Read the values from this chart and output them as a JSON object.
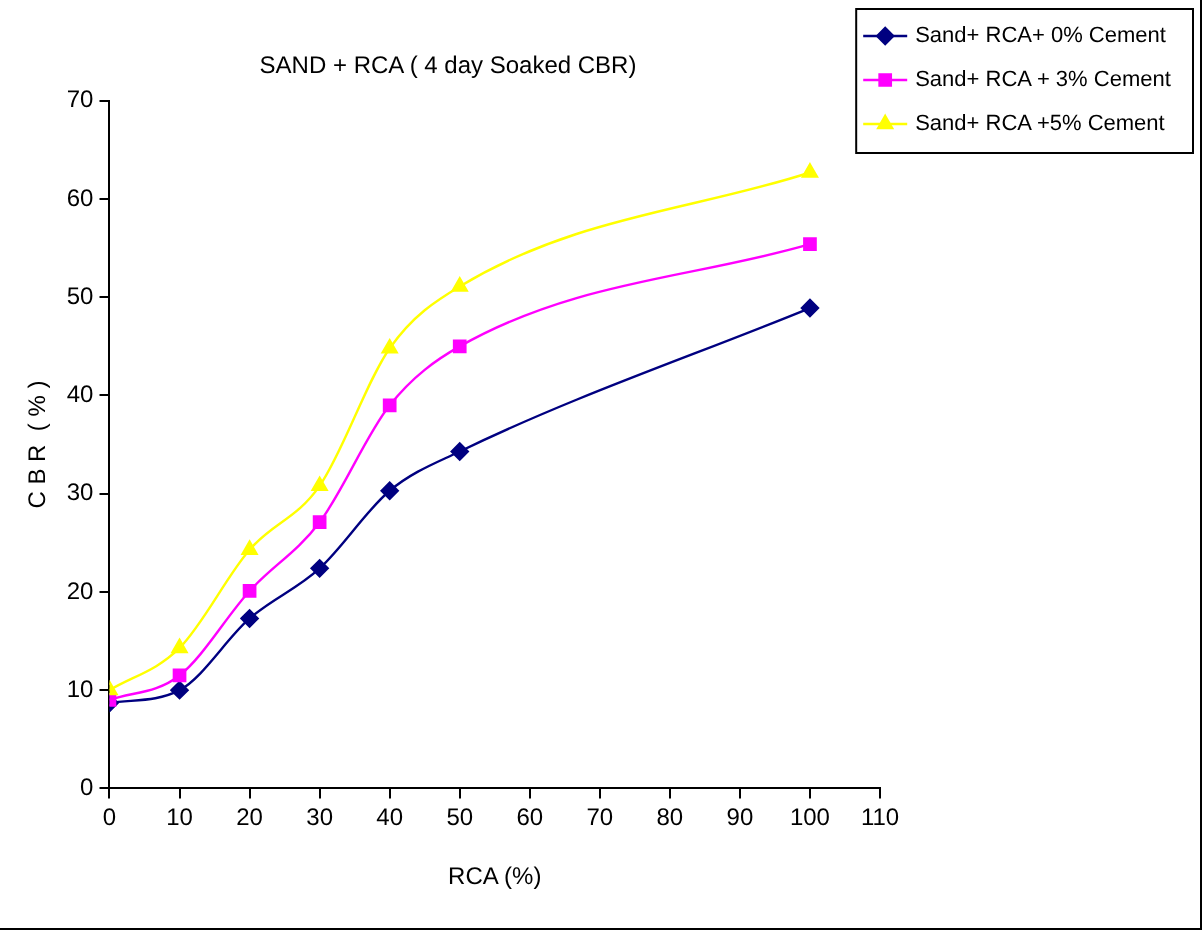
{
  "chart_data": {
    "type": "line",
    "title": "SAND + RCA ( 4 day Soaked CBR)",
    "xlabel": "RCA (%)",
    "ylabel": "C B R  ( % )",
    "x": [
      0,
      10,
      20,
      30,
      40,
      50,
      100
    ],
    "series": [
      {
        "name": "Sand+ RCA+ 0% Cement",
        "color": "#000080",
        "marker": "diamond",
        "values": [
          8.7,
          10,
          17.3,
          22.4,
          30.3,
          34.3,
          48.9
        ]
      },
      {
        "name": "Sand+ RCA + 3% Cement",
        "color": "#ff00ff",
        "marker": "square",
        "values": [
          9,
          11.5,
          20.1,
          27.1,
          39,
          45,
          55.4
        ]
      },
      {
        "name": "Sand+ RCA +5% Cement",
        "color": "#ffff00",
        "marker": "triangle",
        "values": [
          10,
          14.3,
          24.3,
          30.8,
          44.8,
          51.1,
          62.7
        ]
      }
    ],
    "xlim": [
      0,
      110
    ],
    "xticks": [
      0,
      10,
      20,
      30,
      40,
      50,
      60,
      70,
      80,
      90,
      100,
      110
    ],
    "ylim": [
      0,
      70
    ],
    "yticks": [
      0,
      10,
      20,
      30,
      40,
      50,
      60,
      70
    ],
    "grid": false,
    "legend": "top right"
  }
}
